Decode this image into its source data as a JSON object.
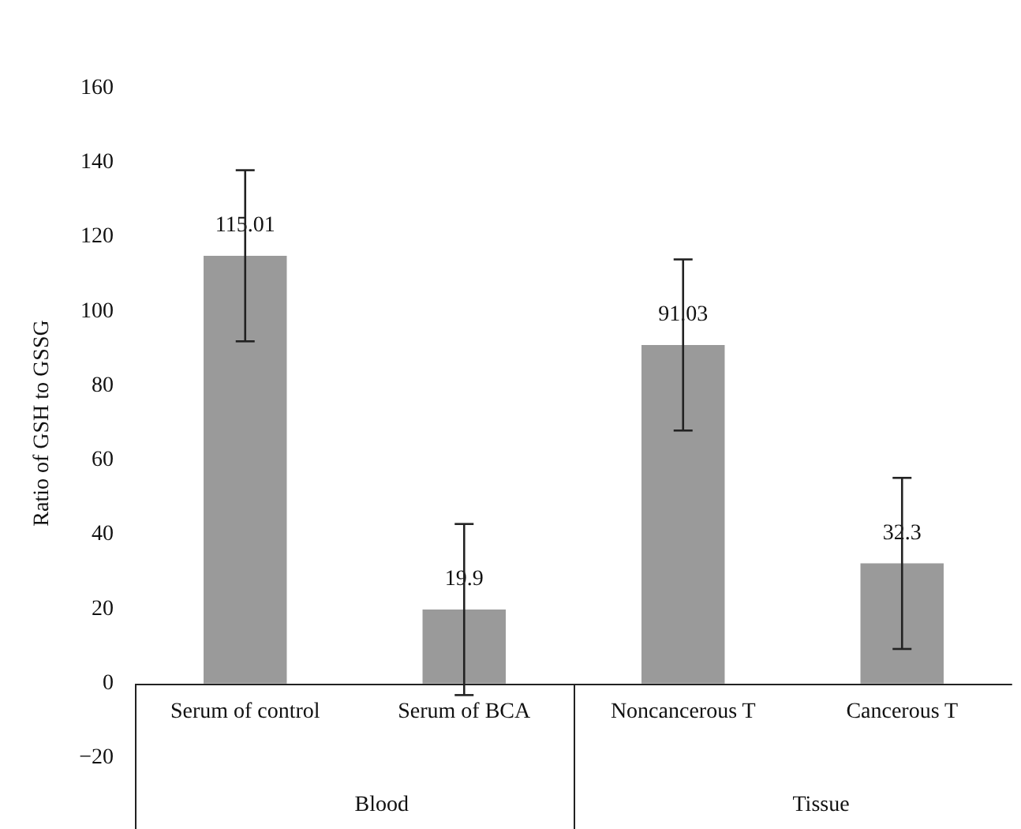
{
  "chart_data": {
    "type": "bar",
    "ylabel": "Ratio of GSH to GSSG",
    "categories": [
      "Serum of control",
      "Serum of BCA",
      "Noncancerous T",
      "Cancerous T"
    ],
    "values": [
      115.01,
      19.9,
      91.03,
      32.3
    ],
    "errors": [
      23,
      23,
      23,
      23
    ],
    "color": "#9a9a9a",
    "data_labels": true,
    "ylim": [
      -20,
      160
    ],
    "yticks": [
      -20,
      0,
      20,
      40,
      60,
      80,
      100,
      120,
      140,
      160
    ],
    "grid": false,
    "annotations": [
      "Blood",
      "Tissue"
    ]
  }
}
